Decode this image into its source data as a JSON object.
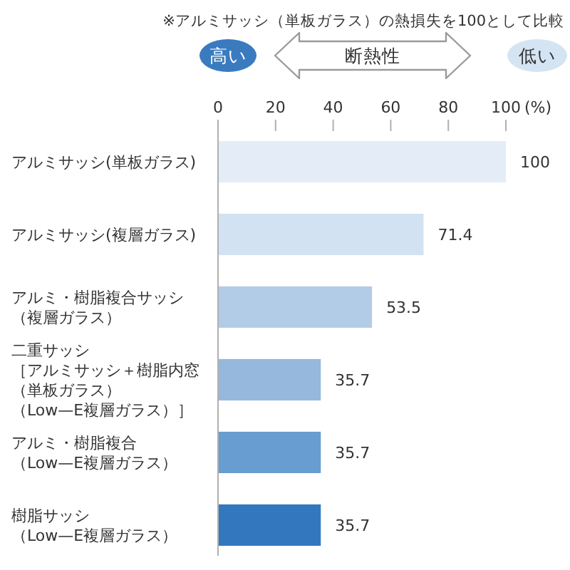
{
  "chart_data": {
    "type": "bar",
    "orientation": "horizontal",
    "title": "※アルミサッシ（単板ガラス）の熱損失を100として比較",
    "annotations": [
      "高い",
      "断熱性",
      "低い"
    ],
    "xlabel": "(%)",
    "categories": [
      "アルミサッシ(単板ガラス)",
      "アルミサッシ(複層ガラス)",
      "アルミ・樹脂複合サッシ（複層ガラス）",
      "二重サッシ［アルミサッシ＋樹脂内窓（単板ガラス）（Low—E複層ガラス）］",
      "アルミ・樹脂複合（Low—E複層ガラス）",
      "樹脂サッシ（Low—E複層ガラス）"
    ],
    "values": [
      100,
      71.4,
      53.5,
      35.7,
      35.7,
      35.7
    ],
    "colors": [
      "#e4edf7",
      "#d2e2f2",
      "#b2cce7",
      "#96b8dd",
      "#679dd0",
      "#3378be"
    ],
    "xlim": [
      0,
      100
    ],
    "xticks": [
      0,
      20,
      40,
      60,
      80,
      100
    ],
    "data_labels": true
  }
}
